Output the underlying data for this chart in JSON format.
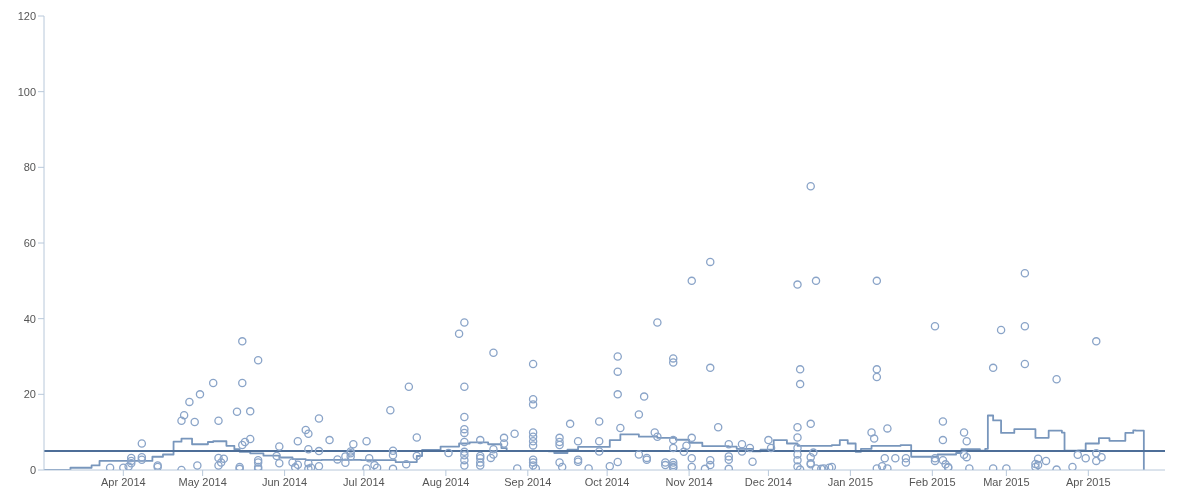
{
  "chart_data": {
    "type": "scatter",
    "xlim": [
      "2014-03-02",
      "2015-04-30"
    ],
    "xticks": [
      {
        "value": "2014-04-01",
        "label": "Apr 2014"
      },
      {
        "value": "2014-05-01",
        "label": "May 2014"
      },
      {
        "value": "2014-06-01",
        "label": "Jun 2014"
      },
      {
        "value": "2014-07-01",
        "label": "Jul 2014"
      },
      {
        "value": "2014-08-01",
        "label": "Aug 2014"
      },
      {
        "value": "2014-09-01",
        "label": "Sep 2014"
      },
      {
        "value": "2014-10-01",
        "label": "Oct 2014"
      },
      {
        "value": "2014-11-01",
        "label": "Nov 2014"
      },
      {
        "value": "2014-12-01",
        "label": "Dec 2014"
      },
      {
        "value": "2015-01-01",
        "label": "Jan 2015"
      },
      {
        "value": "2015-02-01",
        "label": "Feb 2015"
      },
      {
        "value": "2015-03-01",
        "label": "Mar 2015"
      },
      {
        "value": "2015-04-01",
        "label": "Apr 2015"
      }
    ],
    "ylim": [
      0,
      120
    ],
    "yticks": [
      0,
      20,
      40,
      60,
      80,
      100,
      120
    ],
    "grid": false,
    "legend": false,
    "ref_lines": [
      {
        "axis": "y",
        "value": 5,
        "color": "#4d6e98"
      }
    ],
    "series": [
      {
        "type": "scatter",
        "color": "#8aa4c8",
        "marker": "circle",
        "x": [
          "2014-03-27",
          "2014-04-01",
          "2014-04-03",
          "2014-04-04",
          "2014-04-04",
          "2014-04-04",
          "2014-04-08",
          "2014-04-08",
          "2014-04-08",
          "2014-04-14",
          "2014-04-14",
          "2014-04-23",
          "2014-04-23",
          "2014-04-24",
          "2014-04-26",
          "2014-04-28",
          "2014-04-29",
          "2014-04-30",
          "2014-05-05",
          "2014-05-07",
          "2014-05-07",
          "2014-05-07",
          "2014-05-08",
          "2014-05-09",
          "2014-05-14",
          "2014-05-16",
          "2014-05-16",
          "2014-05-16",
          "2014-05-17",
          "2014-05-19",
          "2014-05-19",
          "2014-05-15",
          "2014-05-15",
          "2014-05-22",
          "2014-05-22",
          "2014-05-22",
          "2014-05-22",
          "2014-05-22",
          "2014-05-30",
          "2014-05-29",
          "2014-05-30",
          "2014-06-04",
          "2014-06-05",
          "2014-06-06",
          "2014-06-06",
          "2014-06-09",
          "2014-06-10",
          "2014-06-10",
          "2014-06-10",
          "2014-06-10",
          "2014-06-11",
          "2014-06-14",
          "2014-06-14",
          "2014-06-14",
          "2014-06-18",
          "2014-06-21",
          "2014-06-24",
          "2014-06-24",
          "2014-06-26",
          "2014-06-26",
          "2014-06-26",
          "2014-06-27",
          "2014-07-02",
          "2014-07-03",
          "2014-07-02",
          "2014-07-05",
          "2014-07-06",
          "2014-07-11",
          "2014-07-12",
          "2014-07-12",
          "2014-07-12",
          "2014-07-17",
          "2014-07-18",
          "2014-07-21",
          "2014-07-21",
          "2014-08-02",
          "2014-08-06",
          "2014-08-08",
          "2014-08-08",
          "2014-08-08",
          "2014-08-08",
          "2014-08-08",
          "2014-08-08",
          "2014-08-08",
          "2014-08-08",
          "2014-08-08",
          "2014-08-08",
          "2014-08-14",
          "2014-08-14",
          "2014-08-14",
          "2014-08-14",
          "2014-08-14",
          "2014-08-18",
          "2014-08-19",
          "2014-08-19",
          "2014-08-19",
          "2014-08-23",
          "2014-08-23",
          "2014-08-27",
          "2014-09-03",
          "2014-09-03",
          "2014-09-03",
          "2014-09-03",
          "2014-09-03",
          "2014-09-03",
          "2014-09-03",
          "2014-09-03",
          "2014-09-03",
          "2014-09-03",
          "2014-09-04",
          "2014-08-28",
          "2014-09-13",
          "2014-09-13",
          "2014-09-13",
          "2014-09-13",
          "2014-09-14",
          "2014-09-17",
          "2014-09-20",
          "2014-09-20",
          "2014-09-20",
          "2014-09-24",
          "2014-09-28",
          "2014-09-28",
          "2014-09-28",
          "2014-10-02",
          "2014-10-05",
          "2014-10-05",
          "2014-10-05",
          "2014-10-06",
          "2014-10-05",
          "2014-10-13",
          "2014-10-13",
          "2014-10-15",
          "2014-10-16",
          "2014-10-16",
          "2014-10-19",
          "2014-10-20",
          "2014-10-20",
          "2014-10-23",
          "2014-10-23",
          "2014-10-26",
          "2014-10-26",
          "2014-10-26",
          "2014-10-26",
          "2014-10-26",
          "2014-10-26",
          "2014-10-26",
          "2014-10-26",
          "2014-10-30",
          "2014-10-31",
          "2014-11-02",
          "2014-11-02",
          "2014-11-02",
          "2014-11-02",
          "2014-11-09",
          "2014-11-09",
          "2014-11-09",
          "2014-11-09",
          "2014-11-07",
          "2014-11-12",
          "2014-11-16",
          "2014-11-16",
          "2014-11-16",
          "2014-11-16",
          "2014-11-21",
          "2014-11-21",
          "2014-11-24",
          "2014-11-25",
          "2014-12-01",
          "2014-12-02",
          "2014-12-12",
          "2014-12-13",
          "2014-12-13",
          "2014-12-12",
          "2014-12-12",
          "2014-12-12",
          "2014-12-12",
          "2014-12-12",
          "2014-12-12",
          "2014-12-13",
          "2014-12-17",
          "2014-12-19",
          "2014-12-17",
          "2014-12-18",
          "2014-12-17",
          "2014-12-17",
          "2014-12-17",
          "2014-12-19",
          "2014-12-21",
          "2014-12-22",
          "2014-12-24",
          "2014-12-25",
          "2015-01-11",
          "2015-01-11",
          "2015-01-11",
          "2015-01-09",
          "2015-01-10",
          "2015-01-15",
          "2015-01-14",
          "2015-01-11",
          "2015-01-13",
          "2015-01-15",
          "2015-01-18",
          "2015-01-22",
          "2015-01-22",
          "2015-02-02",
          "2015-02-05",
          "2015-02-05",
          "2015-02-02",
          "2015-02-02",
          "2015-02-05",
          "2015-02-06",
          "2015-02-07",
          "2015-02-07",
          "2015-02-13",
          "2015-02-14",
          "2015-02-13",
          "2015-02-14",
          "2015-02-15",
          "2015-02-24",
          "2015-02-24",
          "2015-02-27",
          "2015-03-01",
          "2015-03-08",
          "2015-03-08",
          "2015-03-08",
          "2015-03-13",
          "2015-03-12",
          "2015-03-13",
          "2015-03-12",
          "2015-03-16",
          "2015-03-20",
          "2015-03-20",
          "2015-03-26",
          "2015-03-28",
          "2015-03-31",
          "2015-04-04",
          "2015-04-04",
          "2015-04-06",
          "2015-04-04"
        ],
        "values": [
          0.6,
          0.6,
          0.9,
          3.2,
          2.4,
          1.8,
          3.4,
          2.7,
          7,
          1.2,
          0.8,
          0,
          13,
          14.5,
          18,
          12.7,
          1.2,
          20,
          23,
          3.2,
          13,
          1.2,
          2,
          3,
          15.4,
          23,
          34,
          6.6,
          7.4,
          15.5,
          8.2,
          0.3,
          0.8,
          29,
          0.8,
          0.3,
          2,
          2.6,
          6.2,
          3.7,
          1.8,
          2,
          0.7,
          1.4,
          7.6,
          10.6,
          9.6,
          5.5,
          1.8,
          0.3,
          0.6,
          13.6,
          1,
          5,
          7.9,
          2.8,
          3.6,
          1.9,
          4.4,
          4.9,
          3.6,
          6.8,
          7.6,
          3.1,
          0.4,
          1.3,
          0.6,
          15.8,
          5.1,
          3.9,
          0.3,
          1.5,
          22,
          8.6,
          3.7,
          4.5,
          36,
          39,
          22,
          14,
          10.8,
          9.8,
          7.4,
          4.8,
          3.9,
          2.6,
          1.2,
          7.9,
          3.7,
          3.1,
          2,
          1.2,
          3.2,
          4.1,
          5.5,
          31,
          8.5,
          7,
          9.6,
          28,
          18.7,
          17.3,
          9.9,
          8.8,
          7.6,
          6.5,
          2.7,
          2,
          1.2,
          0.4,
          0.4,
          8.5,
          7.4,
          6.6,
          2,
          0.8,
          12.2,
          7.6,
          2.7,
          2.2,
          0.4,
          12.8,
          7.6,
          4.9,
          1,
          26,
          30,
          20,
          11.1,
          2.1,
          4.1,
          14.7,
          19.4,
          3.2,
          2.7,
          9.9,
          39,
          8.8,
          2,
          1.3,
          29.5,
          28.4,
          7.9,
          5.8,
          2,
          1.3,
          0.8,
          0.6,
          4.8,
          6.4,
          50,
          8.5,
          3.1,
          0.8,
          55,
          27,
          2.6,
          1.3,
          0.3,
          11.3,
          0.3,
          6.8,
          3.6,
          2.7,
          6.8,
          4.9,
          5.8,
          2.2,
          7.9,
          5.8,
          49,
          26.6,
          22.7,
          11.3,
          8.6,
          5.8,
          4.1,
          2.6,
          0.9,
          0.1,
          75,
          50,
          12.2,
          4.6,
          3.4,
          1.8,
          1.5,
          0.4,
          0.3,
          0.4,
          0.6,
          0.8,
          50,
          26.6,
          24.6,
          9.9,
          8.3,
          11,
          3.1,
          0.4,
          1,
          0.4,
          3.1,
          3.1,
          2,
          38,
          12.8,
          7.9,
          3.1,
          2.4,
          2.6,
          1.5,
          0.6,
          0.8,
          9.9,
          7.6,
          4,
          3.4,
          0.4,
          27,
          0.4,
          37,
          0.4,
          52,
          38,
          28,
          3,
          1.6,
          1.3,
          0.8,
          2.4,
          24,
          0.1,
          0.8,
          4,
          3.1,
          34,
          4.4,
          3.4,
          2.4
        ]
      },
      {
        "type": "step",
        "color": "#7896bc",
        "marker": "none",
        "x": [
          "2014-03-02",
          "2014-03-12",
          "2014-03-20",
          "2014-03-23",
          "2014-04-07",
          "2014-04-12",
          "2014-04-16",
          "2014-04-20",
          "2014-04-23",
          "2014-04-27",
          "2014-05-03",
          "2014-05-05",
          "2014-05-10",
          "2014-05-13",
          "2014-05-15",
          "2014-05-19",
          "2014-05-24",
          "2014-05-30",
          "2014-06-04",
          "2014-06-09",
          "2014-06-15",
          "2014-06-30",
          "2014-07-13",
          "2014-07-21",
          "2014-07-23",
          "2014-07-30",
          "2014-08-06",
          "2014-08-10",
          "2014-08-17",
          "2014-08-22",
          "2014-08-24",
          "2014-09-09",
          "2014-09-11",
          "2014-09-16",
          "2014-09-20",
          "2014-10-02",
          "2014-10-06",
          "2014-10-13",
          "2014-10-20",
          "2014-10-27",
          "2014-11-01",
          "2014-11-06",
          "2014-11-16",
          "2014-11-19",
          "2014-11-25",
          "2014-11-28",
          "2014-12-03",
          "2014-12-08",
          "2014-12-12",
          "2014-12-25",
          "2014-12-28",
          "2014-12-31",
          "2015-01-03",
          "2015-01-05",
          "2015-01-09",
          "2015-01-20",
          "2015-01-24",
          "2015-02-03",
          "2015-02-10",
          "2015-02-12",
          "2015-02-19",
          "2015-02-21",
          "2015-02-22",
          "2015-02-24",
          "2015-02-27",
          "2015-03-04",
          "2015-03-12",
          "2015-03-17",
          "2015-03-22",
          "2015-03-23",
          "2015-03-28",
          "2015-03-31",
          "2015-04-05",
          "2015-04-09",
          "2015-04-15",
          "2015-04-18",
          "2015-04-19",
          "2015-04-22"
        ],
        "values": [
          0,
          0.6,
          1.2,
          2.4,
          2.4,
          3.5,
          4.1,
          7.5,
          8.3,
          6.8,
          7.4,
          7.6,
          6.4,
          5.5,
          4.8,
          4.4,
          3.8,
          3.3,
          2.9,
          2.6,
          2.7,
          2.6,
          2.1,
          3.7,
          5.3,
          6.2,
          7,
          7.3,
          6.8,
          5.8,
          5,
          4.9,
          4.5,
          5.4,
          6.1,
          7.9,
          9.4,
          8.8,
          8.5,
          8,
          7.2,
          6.3,
          6.2,
          5.6,
          4.9,
          5.4,
          7.9,
          7,
          6.4,
          6.6,
          7.9,
          7,
          4.8,
          5.6,
          6.4,
          6.6,
          3.5,
          4.1,
          4.5,
          5.5,
          5.1,
          5.6,
          14.4,
          13.1,
          9.8,
          10.8,
          8.5,
          10.4,
          9.9,
          5.1,
          5.2,
          7,
          8.4,
          7.7,
          9.8,
          10.5,
          10.4,
          0
        ]
      }
    ]
  }
}
